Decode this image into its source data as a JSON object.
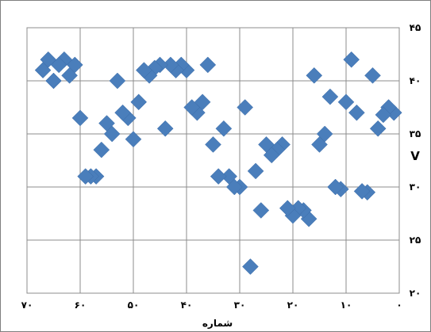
{
  "chart_data": {
    "type": "scatter",
    "title": "",
    "xlabel": "شماره",
    "ylabel": "V",
    "xlim": [
      0,
      70
    ],
    "ylim": [
      20,
      45
    ],
    "x_reversed": true,
    "y_axis_side": "right",
    "grid": true,
    "marker": "diamond",
    "marker_color": "#4a7ebb",
    "x_tick_labels": [
      "۷۰",
      "۶۰",
      "۵۰",
      "۴۰",
      "۳۰",
      "۲۰",
      "۱۰",
      "۰"
    ],
    "y_tick_labels": [
      "۲۰",
      "۲۵",
      "۳۰",
      "۳۵",
      "۴۰",
      "۴۵"
    ],
    "series": [
      {
        "x": [
          1,
          2,
          3,
          4,
          5,
          6,
          7,
          8,
          9,
          10,
          11,
          12,
          13,
          14,
          15,
          16,
          17,
          18,
          19,
          20,
          21,
          22,
          23,
          24,
          25,
          26,
          27,
          28,
          29,
          30,
          31,
          32,
          33,
          34,
          35,
          36,
          37,
          38,
          39,
          40,
          41,
          42,
          43,
          44,
          45,
          46,
          47,
          48,
          49,
          50,
          51,
          52,
          53,
          54,
          55,
          56,
          57,
          58,
          59,
          60,
          61,
          62,
          63,
          64,
          65,
          66,
          67
        ],
        "y": [
          37.0,
          37.5,
          36.8,
          35.5,
          40.5,
          29.5,
          29.6,
          37.0,
          42.0,
          38.0,
          29.8,
          30.0,
          38.5,
          35.0,
          34.0,
          40.5,
          27.0,
          27.8,
          28.0,
          27.3,
          28.0,
          34.0,
          33.5,
          33.0,
          34.0,
          27.8,
          31.5,
          22.5,
          37.5,
          30.0,
          30.0,
          31.0,
          35.5,
          31.0,
          34.0,
          41.5,
          38.0,
          37.0,
          37.5,
          41.0,
          41.5,
          41.0,
          41.5,
          35.5,
          41.5,
          41.2,
          40.5,
          41.0,
          38.0,
          34.5,
          36.5,
          37.0,
          40.0,
          35.0,
          36.0,
          33.5,
          31.0,
          31.0,
          31.0,
          36.5,
          41.5,
          40.5,
          42.0,
          41.5,
          40.0,
          42.0,
          41.0
        ]
      }
    ]
  }
}
